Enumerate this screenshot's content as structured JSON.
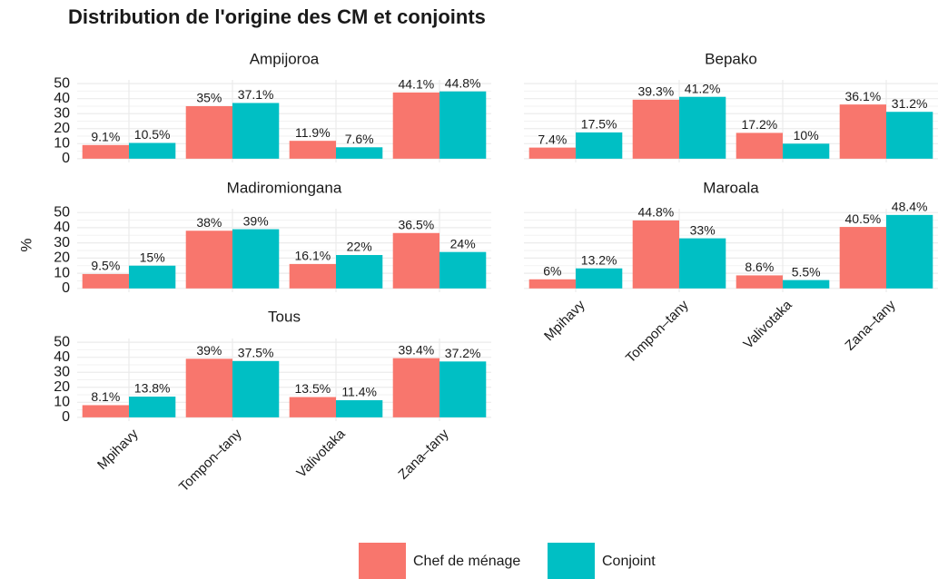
{
  "title": "Distribution de l'origine des CM et conjoints",
  "ylabel": "%",
  "chart_data": [
    {
      "type": "bar",
      "title": "Ampijoroa",
      "categories": [
        "Mpihavy",
        "Tompon–tany",
        "Valivotaka",
        "Zana–tany"
      ],
      "series": [
        {
          "name": "Chef de ménage",
          "color": "#F8766D",
          "values": [
            9.1,
            35,
            11.9,
            44.1
          ],
          "value_labels": [
            "9.1%",
            "35%",
            "11.9%",
            "44.1%"
          ]
        },
        {
          "name": "Conjoint",
          "color": "#00BFC4",
          "values": [
            10.5,
            37.1,
            7.6,
            44.8
          ],
          "value_labels": [
            "10.5%",
            "37.1%",
            "7.6%",
            "44.8%"
          ]
        }
      ],
      "ylim": [
        -2.5,
        52.5
      ],
      "yticks": [
        0,
        10,
        20,
        30,
        40,
        50
      ],
      "grid": true
    },
    {
      "type": "bar",
      "title": "Bepako",
      "categories": [
        "Mpihavy",
        "Tompon–tany",
        "Valivotaka",
        "Zana–tany"
      ],
      "series": [
        {
          "name": "Chef de ménage",
          "color": "#F8766D",
          "values": [
            7.4,
            39.3,
            17.2,
            36.1
          ],
          "value_labels": [
            "7.4%",
            "39.3%",
            "17.2%",
            "36.1%"
          ]
        },
        {
          "name": "Conjoint",
          "color": "#00BFC4",
          "values": [
            17.5,
            41.2,
            10,
            31.2
          ],
          "value_labels": [
            "17.5%",
            "41.2%",
            "10%",
            "31.2%"
          ]
        }
      ],
      "ylim": [
        -2.5,
        52.5
      ],
      "yticks": [
        0,
        10,
        20,
        30,
        40,
        50
      ],
      "grid": true
    },
    {
      "type": "bar",
      "title": "Madiromiongana",
      "categories": [
        "Mpihavy",
        "Tompon–tany",
        "Valivotaka",
        "Zana–tany"
      ],
      "series": [
        {
          "name": "Chef de ménage",
          "color": "#F8766D",
          "values": [
            9.5,
            38,
            16.1,
            36.5
          ],
          "value_labels": [
            "9.5%",
            "38%",
            "16.1%",
            "36.5%"
          ]
        },
        {
          "name": "Conjoint",
          "color": "#00BFC4",
          "values": [
            15,
            39,
            22,
            24
          ],
          "value_labels": [
            "15%",
            "39%",
            "22%",
            "24%"
          ]
        }
      ],
      "ylim": [
        -2.5,
        52.5
      ],
      "yticks": [
        0,
        10,
        20,
        30,
        40,
        50
      ],
      "grid": true
    },
    {
      "type": "bar",
      "title": "Maroala",
      "categories": [
        "Mpihavy",
        "Tompon–tany",
        "Valivotaka",
        "Zana–tany"
      ],
      "series": [
        {
          "name": "Chef de ménage",
          "color": "#F8766D",
          "values": [
            6,
            44.8,
            8.6,
            40.5
          ],
          "value_labels": [
            "6%",
            "44.8%",
            "8.6%",
            "40.5%"
          ]
        },
        {
          "name": "Conjoint",
          "color": "#00BFC4",
          "values": [
            13.2,
            33,
            5.5,
            48.4
          ],
          "value_labels": [
            "13.2%",
            "33%",
            "5.5%",
            "48.4%"
          ]
        }
      ],
      "ylim": [
        -2.5,
        52.5
      ],
      "yticks": [
        0,
        10,
        20,
        30,
        40,
        50
      ],
      "grid": true
    },
    {
      "type": "bar",
      "title": "Tous",
      "categories": [
        "Mpihavy",
        "Tompon–tany",
        "Valivotaka",
        "Zana–tany"
      ],
      "series": [
        {
          "name": "Chef de ménage",
          "color": "#F8766D",
          "values": [
            8.1,
            39,
            13.5,
            39.4
          ],
          "value_labels": [
            "8.1%",
            "39%",
            "13.5%",
            "39.4%"
          ]
        },
        {
          "name": "Conjoint",
          "color": "#00BFC4",
          "values": [
            13.8,
            37.5,
            11.4,
            37.2
          ],
          "value_labels": [
            "13.8%",
            "37.5%",
            "11.4%",
            "37.2%"
          ]
        }
      ],
      "ylim": [
        -2.5,
        52.5
      ],
      "yticks": [
        0,
        10,
        20,
        30,
        40,
        50
      ],
      "grid": true
    }
  ]
}
